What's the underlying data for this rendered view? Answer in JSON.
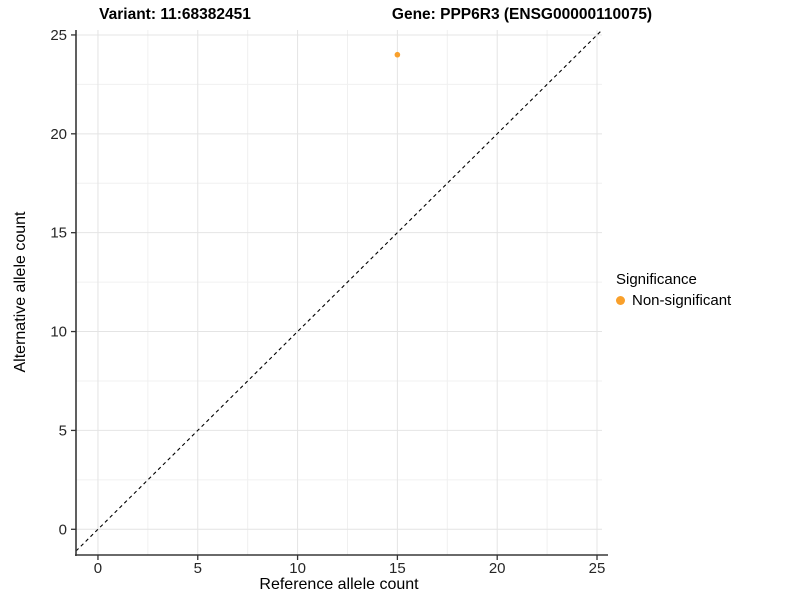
{
  "chart_data": {
    "type": "scatter",
    "titles": {
      "variant": "Variant: 11:68382451",
      "gene": "Gene: PPP6R3 (ENSG00000110075)"
    },
    "xlabel": "Reference allele count",
    "ylabel": "Alternative allele count",
    "xlim": [
      -1.1,
      25.25
    ],
    "ylim": [
      -1.3,
      25.25
    ],
    "x_ticks": [
      0,
      5,
      10,
      15,
      20,
      25
    ],
    "y_ticks": [
      0,
      5,
      10,
      15,
      20,
      25
    ],
    "x_minor_ticks": [
      2.5,
      7.5,
      12.5,
      17.5,
      22.5
    ],
    "y_minor_ticks": [
      2.5,
      7.5,
      12.5,
      17.5,
      22.5
    ],
    "grid": true,
    "points": [
      {
        "x": 15,
        "y": 24,
        "significance": "Non-significant"
      }
    ],
    "identity_line": {
      "type": "y=x",
      "style": "dashed",
      "color": "#000000"
    },
    "point_color": "#F9A02B",
    "point_radius": 2.8,
    "legend": {
      "title": "Significance",
      "position": "right",
      "items": [
        {
          "label": "Non-significant",
          "color": "#F9A02B"
        }
      ]
    },
    "colors": {
      "grid_major": "#e4e4e4",
      "grid_minor": "#f0f0f0",
      "axis_line": "#383838",
      "tick_mark": "#333333",
      "tick_label": "#262626",
      "background": "#ffffff"
    }
  }
}
